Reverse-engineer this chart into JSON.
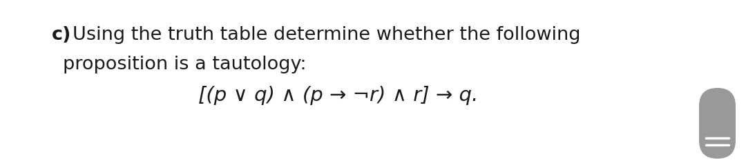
{
  "background_color": "#ffffff",
  "text_color": "#1a1a1a",
  "line1_bold": "c)",
  "line1_rest": " Using the truth table determine whether the following",
  "line2": "proposition is a tautology:",
  "line3": "[(p ∨ q) ∧ (p → ¬r) ∧ r] → q.",
  "font_size": 19.5,
  "font_size_formula": 21,
  "scrollbar_color": "#999999",
  "scrollbar_line_color": "#ffffff",
  "fig_width": 10.8,
  "fig_height": 2.33
}
